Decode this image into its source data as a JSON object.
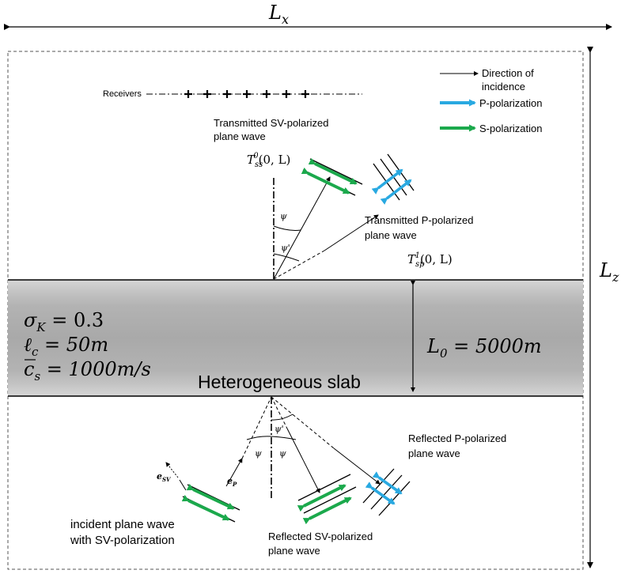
{
  "labels": {
    "lx": "L",
    "lx_sub": "x",
    "lz": "L",
    "lz_sub": "z",
    "receivers": "Receivers",
    "legend_direction_1": "Direction of",
    "legend_direction_2": "incidence",
    "legend_p": "P-polarization",
    "legend_s": "S-polarization",
    "transmitted_sv_1": "Transmitted SV-polarized",
    "transmitted_sv_2": "plane wave",
    "tss_T": "T",
    "tss_sub": "ss",
    "tss_sup": "0",
    "tss_arg": "(0, L)",
    "transmitted_p_1": "Transmitted P-polarized",
    "transmitted_p_2": "plane wave",
    "tsp_T": "T",
    "tsp_sub": "sp",
    "tsp_sup": "1",
    "tsp_arg": "(0, L)",
    "psi": "ψ",
    "psi_prime": "ψ'",
    "sigma": "σ",
    "sigma_sub": "K",
    "sigma_val": " = 0.3",
    "ell": "ℓ",
    "ell_sub": "c",
    "ell_val": " = 50m",
    "cs": "c",
    "cs_sub": "s",
    "cs_val": " = 1000m/s",
    "l0": "L",
    "l0_sub": "0",
    "l0_val": " = 5000m",
    "slab": "Heterogeneous slab",
    "reflected_p_1": "Reflected P-polarized",
    "reflected_p_2": "plane wave",
    "reflected_sv_1": "Reflected SV-polarized",
    "reflected_sv_2": "plane wave",
    "incident_1": "incident plane wave",
    "incident_2": "with SV-polarization",
    "esv": "e",
    "esv_sub": "SV",
    "ep": "e",
    "ep_sub": "P"
  },
  "colors": {
    "p_polarization": "#29a9e1",
    "s_polarization": "#1ba94c",
    "slab_core": "#a9a9a9",
    "slab_edge": "#d4d4d4"
  }
}
